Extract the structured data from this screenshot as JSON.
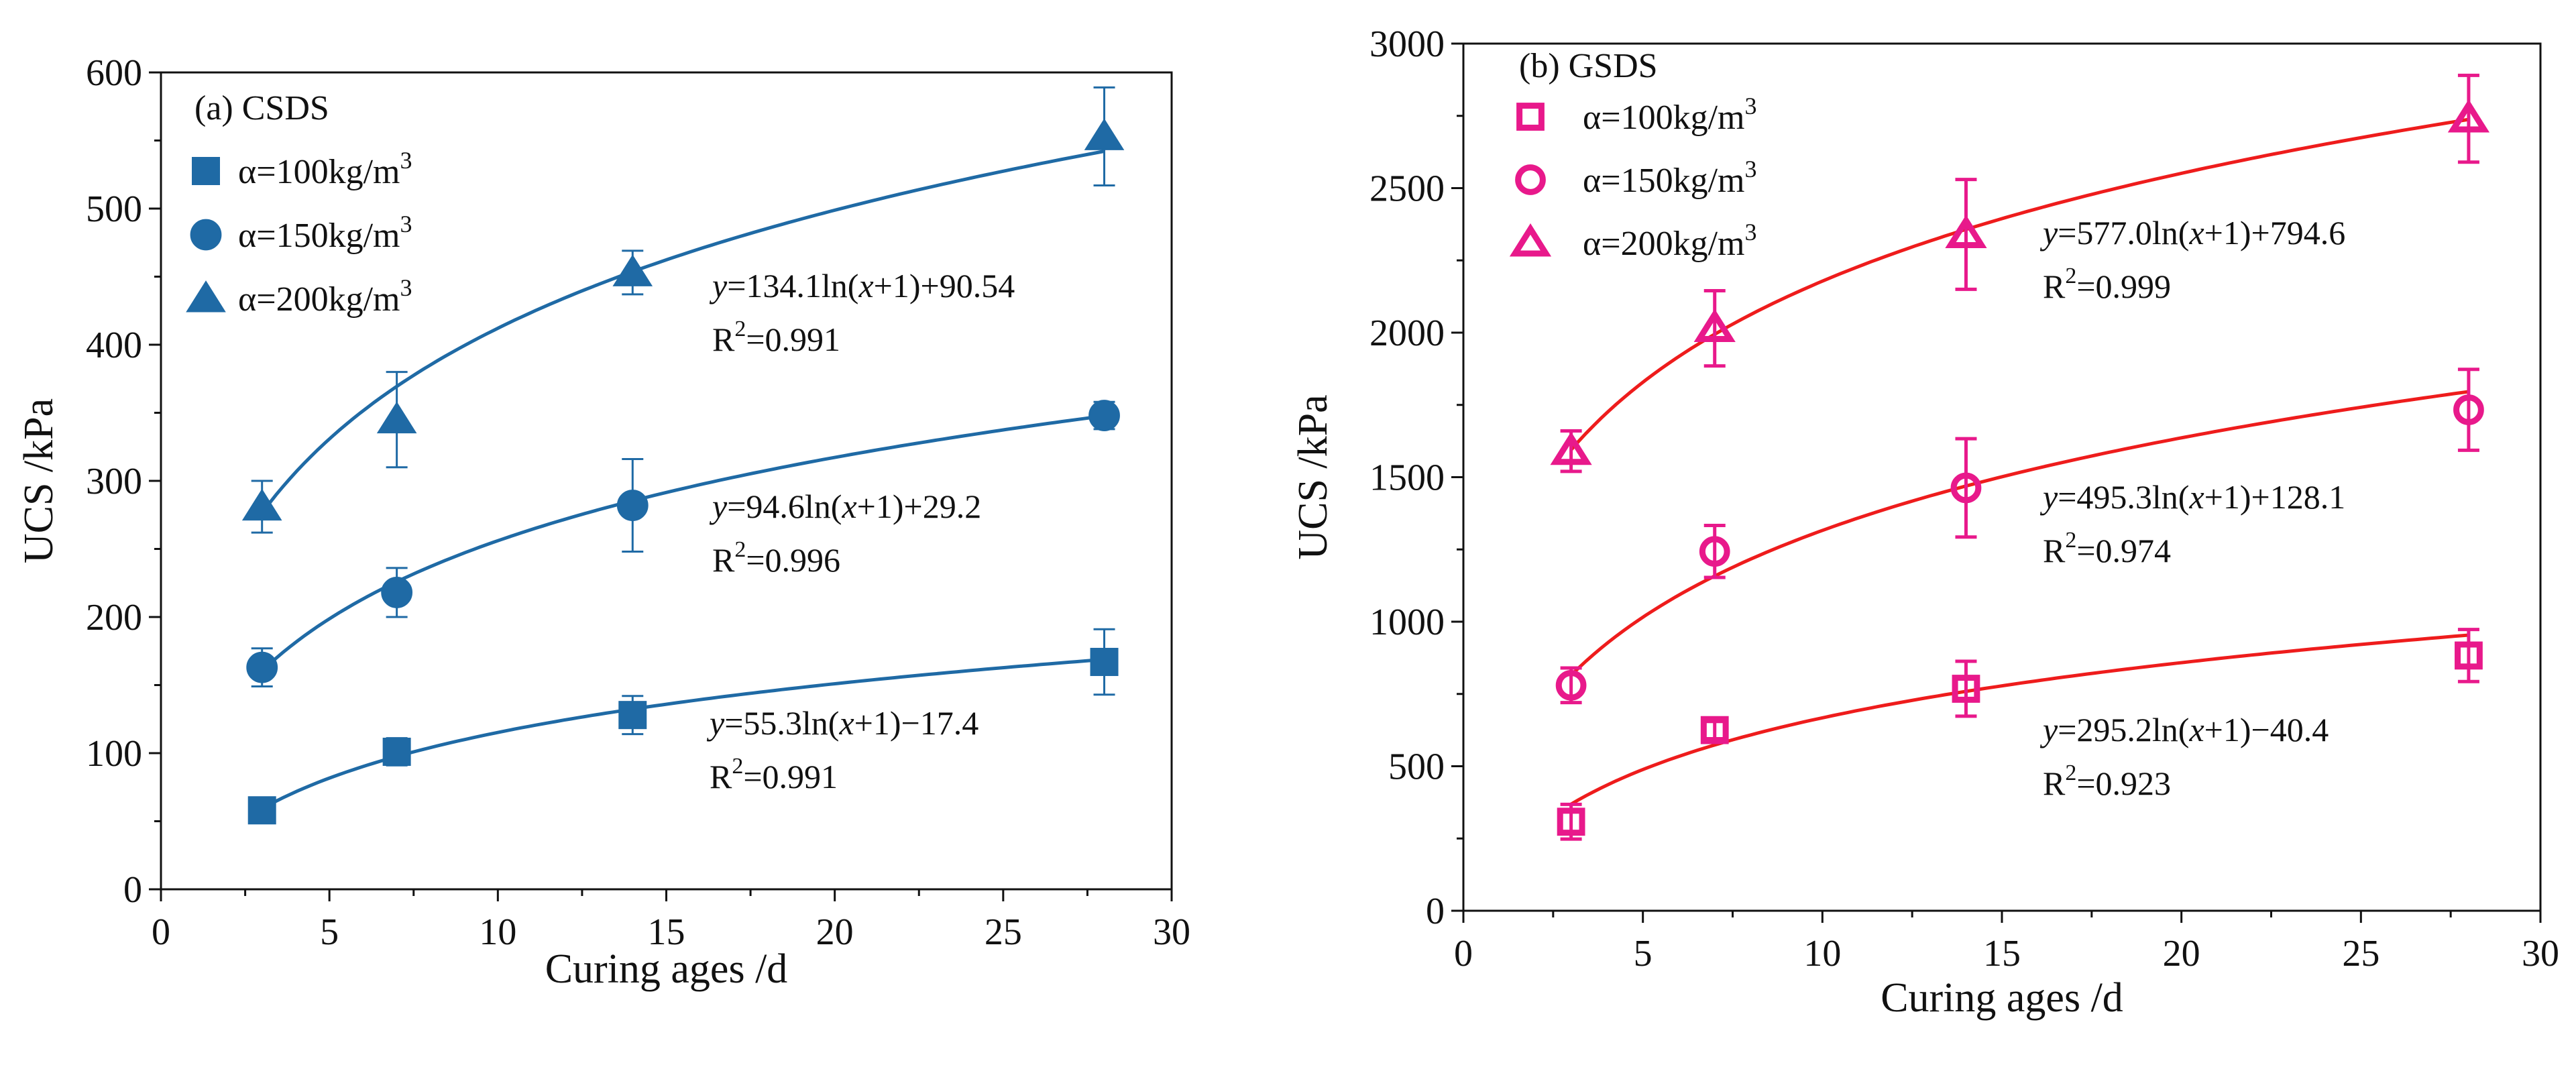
{
  "chart_data": [
    {
      "type": "scatter",
      "panel_label": "(a) CSDS",
      "xlabel": "Curing ages  /d",
      "ylabel": "UCS /kPa",
      "xlim": [
        0,
        30
      ],
      "ylim": [
        0,
        600
      ],
      "xticks": [
        0,
        5,
        10,
        15,
        20,
        25,
        30
      ],
      "yticks": [
        0,
        100,
        200,
        300,
        400,
        500,
        600
      ],
      "color": "#1f6aa5",
      "marker_fill": "filled",
      "legend_placement": "top-left",
      "series": [
        {
          "name": "α=100kg/m³",
          "name_base": "α=100kg/m",
          "name_sup": "3",
          "marker": "square",
          "x": [
            3,
            7,
            14,
            28
          ],
          "y": [
            58,
            101,
            128,
            167
          ],
          "error": [
            6,
            10,
            14,
            24
          ],
          "fit": {
            "a": 55.3,
            "b": -17.4
          },
          "equation": {
            "pre": "y",
            "mid": "=55.3ln(",
            "var": "x",
            "post": "+1)−17.4"
          },
          "r2": {
            "pre": "R",
            "sup": "2",
            "post": "=0.991"
          }
        },
        {
          "name": "α=150kg/m³",
          "name_base": "α=150kg/m",
          "name_sup": "3",
          "marker": "circle",
          "x": [
            3,
            7,
            14,
            28
          ],
          "y": [
            163,
            218,
            282,
            348
          ],
          "error": [
            14,
            18,
            34,
            10
          ],
          "fit": {
            "a": 94.6,
            "b": 29.2
          },
          "equation": {
            "pre": "y",
            "mid": "=94.6ln(",
            "var": "x",
            "post": "+1)+29.2"
          },
          "r2": {
            "pre": "R",
            "sup": "2",
            "post": "=0.996"
          }
        },
        {
          "name": "α=200kg/m³",
          "name_base": "α=200kg/m",
          "name_sup": "3",
          "marker": "triangle",
          "x": [
            3,
            7,
            14,
            28
          ],
          "y": [
            281,
            345,
            453,
            553
          ],
          "error": [
            19,
            35,
            16,
            36
          ],
          "fit": {
            "a": 134.1,
            "b": 90.54
          },
          "equation": {
            "pre": "y",
            "mid": "=134.1ln(",
            "var": "x",
            "post": "+1)+90.54"
          },
          "r2": {
            "pre": "R",
            "sup": "2",
            "post": "=0.991"
          }
        }
      ]
    },
    {
      "type": "scatter",
      "panel_label": "(b) GSDS",
      "xlabel": "Curing ages  /d",
      "ylabel": "UCS /kPa",
      "xlim": [
        0,
        30
      ],
      "ylim": [
        0,
        3000
      ],
      "xticks": [
        0,
        5,
        10,
        15,
        20,
        25,
        30
      ],
      "yticks": [
        0,
        500,
        1000,
        1500,
        2000,
        2500,
        3000
      ],
      "color": "#e8198b",
      "fit_color": "#ee1c1c",
      "marker_fill": "hollow",
      "legend_placement": "top-left",
      "series": [
        {
          "name": "α=100kg/m³",
          "name_base": "α=100kg/m",
          "name_sup": "3",
          "marker": "square",
          "x": [
            3,
            7,
            14,
            28
          ],
          "y": [
            308,
            625,
            768,
            883
          ],
          "error": [
            60,
            30,
            95,
            90
          ],
          "fit": {
            "a": 295.2,
            "b": -40.4
          },
          "equation": {
            "pre": "y",
            "mid": "=295.2ln(",
            "var": "x",
            "post": "+1)−40.4"
          },
          "r2": {
            "pre": "R",
            "sup": "2",
            "post": "=0.923"
          }
        },
        {
          "name": "α=150kg/m³",
          "name_base": "α=150kg/m",
          "name_sup": "3",
          "marker": "circle",
          "x": [
            3,
            7,
            14,
            28
          ],
          "y": [
            780,
            1243,
            1463,
            1733
          ],
          "error": [
            60,
            90,
            170,
            140
          ],
          "fit": {
            "a": 495.3,
            "b": 128.1
          },
          "equation": {
            "pre": "y",
            "mid": "=495.3ln(",
            "var": "x",
            "post": "+1)+128.1"
          },
          "r2": {
            "pre": "R",
            "sup": "2",
            "post": "=0.974"
          }
        },
        {
          "name": "α=200kg/m³",
          "name_base": "α=200kg/m",
          "name_sup": "3",
          "marker": "triangle",
          "x": [
            3,
            7,
            14,
            28
          ],
          "y": [
            1590,
            2015,
            2340,
            2740
          ],
          "error": [
            70,
            130,
            190,
            150
          ],
          "fit": {
            "a": 577.0,
            "b": 794.6
          },
          "equation": {
            "pre": "y",
            "mid": "=577.0ln(",
            "var": "x",
            "post": "+1)+794.6"
          },
          "r2": {
            "pre": "R",
            "sup": "2",
            "post": "=0.999"
          }
        }
      ]
    }
  ]
}
